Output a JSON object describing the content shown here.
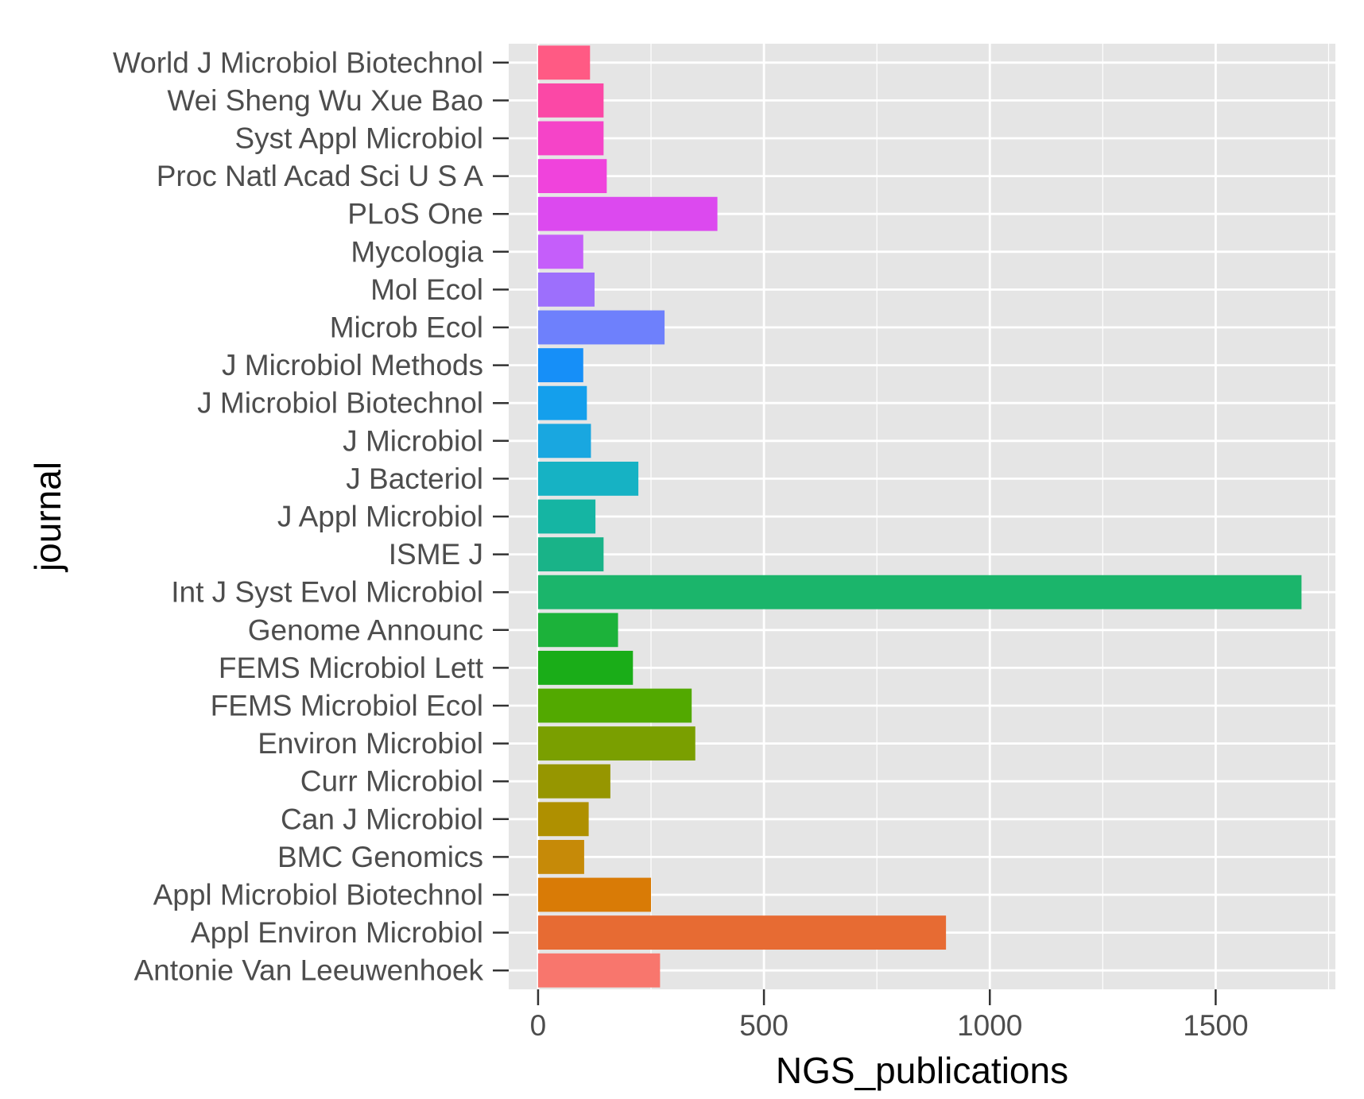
{
  "chart_data": {
    "type": "bar",
    "orientation": "horizontal",
    "xlabel": "NGS_publications",
    "ylabel": "journal",
    "xlim": [
      -65,
      1765
    ],
    "x_ticks": [
      0,
      500,
      1000,
      1500
    ],
    "x_tick_labels": [
      "0",
      "500",
      "1000",
      "1500"
    ],
    "grid": true,
    "legend": "none",
    "panel_background": "#e5e5e5",
    "grid_color": "#ffffff",
    "categories": [
      "Antonie Van Leeuwenhoek",
      "Appl Environ Microbiol",
      "Appl Microbiol Biotechnol",
      "BMC Genomics",
      "Can J Microbiol",
      "Curr Microbiol",
      "Environ Microbiol",
      "FEMS Microbiol Ecol",
      "FEMS Microbiol Lett",
      "Genome Announc",
      "Int J Syst Evol Microbiol",
      "ISME J",
      "J Appl Microbiol",
      "J Bacteriol",
      "J Microbiol",
      "J Microbiol Biotechnol",
      "J Microbiol Methods",
      "Microb Ecol",
      "Mol Ecol",
      "Mycologia",
      "PLoS One",
      "Proc Natl Acad Sci U S A",
      "Syst Appl Microbiol",
      "Wei Sheng Wu Xue Bao",
      "World J Microbiol Biotechnol"
    ],
    "values": [
      270,
      903,
      250,
      102,
      112,
      160,
      348,
      340,
      210,
      177,
      1690,
      145,
      127,
      222,
      117,
      108,
      100,
      280,
      125,
      100,
      397,
      152,
      145,
      145,
      115
    ],
    "colors": [
      "#f8766d",
      "#e76b33",
      "#d97b06",
      "#c68a08",
      "#af9000",
      "#969600",
      "#7a9f00",
      "#52a900",
      "#1aad18",
      "#1cb23a",
      "#1bb56b",
      "#19b388",
      "#15b5a3",
      "#16b2c4",
      "#19a7e0",
      "#149fec",
      "#168ff8",
      "#6e80fc",
      "#9d6ffc",
      "#c55efa",
      "#dc49ef",
      "#f043dc",
      "#f544c8",
      "#fb48a6",
      "#ff5a84"
    ]
  }
}
